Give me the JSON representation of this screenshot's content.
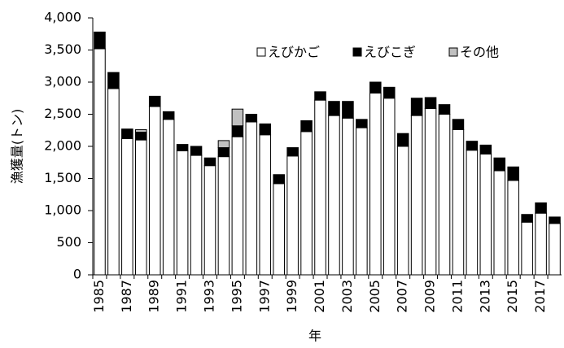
{
  "chart_data": {
    "type": "stacked-bar",
    "y_label": "漁獲量(トン)",
    "x_label": "年",
    "categories": [
      "1985",
      null,
      "1987",
      null,
      "1989",
      null,
      "1991",
      null,
      "1993",
      null,
      "1995",
      null,
      "1997",
      null,
      "1999",
      null,
      "2001",
      null,
      "2003",
      null,
      "2005",
      null,
      "2007",
      null,
      "2009",
      null,
      "2011",
      null,
      "2013",
      null,
      "2015",
      null,
      "2017",
      null
    ],
    "series": [
      {
        "name": "えびかご",
        "color": "#ffffff",
        "values": [
          3520,
          2900,
          2120,
          2100,
          2620,
          2420,
          1930,
          1860,
          1700,
          1840,
          2150,
          2380,
          2180,
          1420,
          1850,
          2230,
          2720,
          2480,
          2440,
          2290,
          2830,
          2750,
          2000,
          2480,
          2590,
          2500,
          2260,
          1940,
          1880,
          1620,
          1470,
          820,
          960,
          800
        ]
      },
      {
        "name": "えびこぎ",
        "color": "#000000",
        "values": [
          260,
          250,
          150,
          120,
          160,
          120,
          100,
          140,
          120,
          140,
          170,
          120,
          170,
          140,
          130,
          170,
          130,
          220,
          260,
          130,
          170,
          170,
          200,
          270,
          170,
          150,
          160,
          140,
          140,
          200,
          210,
          120,
          160,
          100
        ]
      },
      {
        "name": "その他",
        "color": "#c0c0c0",
        "values": [
          0,
          0,
          0,
          40,
          0,
          0,
          0,
          0,
          0,
          110,
          260,
          0,
          0,
          0,
          0,
          0,
          0,
          0,
          0,
          0,
          0,
          0,
          0,
          0,
          0,
          0,
          0,
          0,
          0,
          0,
          0,
          0,
          0,
          0
        ]
      }
    ],
    "ylim": [
      0,
      4000
    ],
    "yticks": [
      0,
      500,
      {
        "value": 1000,
        "label": "1,000"
      },
      {
        "value": 1500,
        "label": "1,500"
      },
      {
        "value": 2000,
        "label": "2,000"
      },
      {
        "value": 2500,
        "label": "2,500"
      },
      {
        "value": 3000,
        "label": "3,000"
      },
      {
        "value": 3500,
        "label": "3,500"
      },
      {
        "value": 4000,
        "label": "4,000"
      }
    ],
    "grid": false
  }
}
